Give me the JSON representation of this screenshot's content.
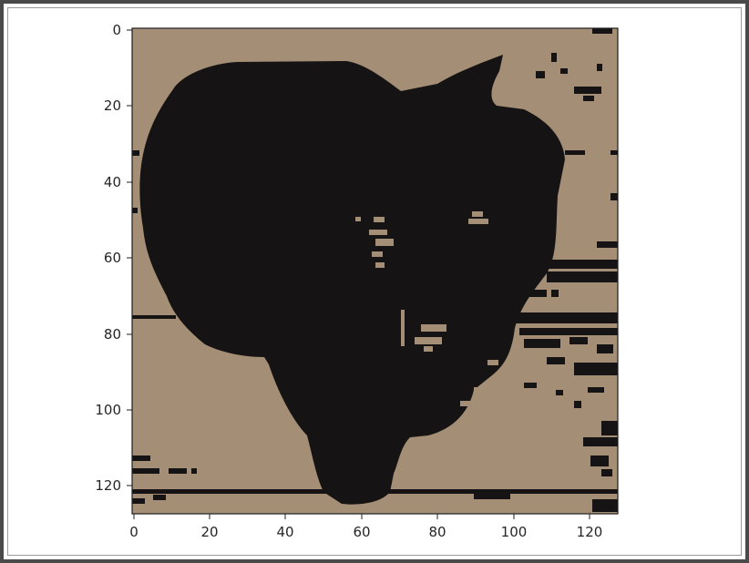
{
  "image": {
    "axes": {
      "x_ticks": [
        "0",
        "20",
        "40",
        "60",
        "80",
        "100",
        "120"
      ],
      "y_ticks": [
        "0",
        "20",
        "40",
        "60",
        "80",
        "100",
        "120"
      ],
      "x_range": [
        0,
        128
      ],
      "y_range": [
        0,
        128
      ]
    },
    "palette": {
      "background": "#a48e75",
      "foreground": "#151313"
    },
    "subject": "black dog face"
  }
}
